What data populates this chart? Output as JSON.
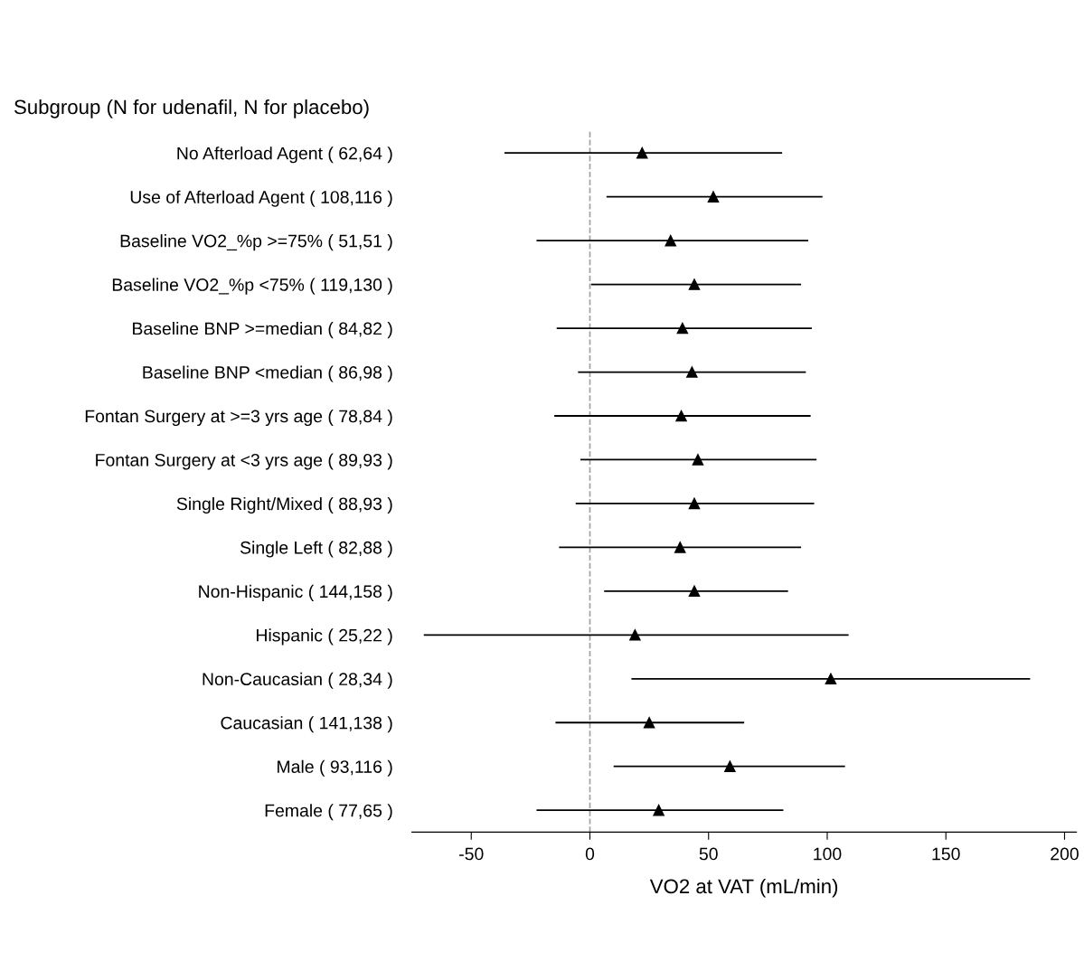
{
  "chart_data": {
    "type": "scatter",
    "orientation": "horizontal",
    "title": "Subgroup (N for udenafil, N for placebo)",
    "xlabel": "VO2 at VAT (mL/min)",
    "categories": [
      "No Afterload Agent ( 62,64 )",
      "Use of Afterload Agent ( 108,116 )",
      "Baseline VO2_%p >=75% ( 51,51 )",
      "Baseline VO2_%p <75% ( 119,130 )",
      "Baseline BNP >=median ( 84,82 )",
      "Baseline BNP <median ( 86,98 )",
      "Fontan Surgery at >=3 yrs age ( 78,84 )",
      "Fontan Surgery at <3 yrs age ( 89,93 )",
      "Single Right/Mixed ( 88,93 )",
      "Single Left ( 82,88 )",
      "Non-Hispanic ( 144,158 )",
      "Hispanic ( 25,22 )",
      "Non-Caucasian ( 28,34 )",
      "Caucasian ( 141,138 )",
      "Male ( 93,116 )",
      "Female ( 77,65 )"
    ],
    "values": [
      22,
      52,
      34,
      44,
      39,
      43,
      38.5,
      45.5,
      44,
      38,
      44,
      19,
      101.5,
      25,
      59,
      29
    ],
    "errors": [
      [
        -36,
        81
      ],
      [
        7,
        98
      ],
      [
        -22.5,
        92
      ],
      [
        0.5,
        89
      ],
      [
        -14,
        93.5
      ],
      [
        -5,
        91
      ],
      [
        -15,
        93
      ],
      [
        -4,
        95.5
      ],
      [
        -6,
        94.5
      ],
      [
        -13,
        89
      ],
      [
        6,
        83.5
      ],
      [
        -70,
        109
      ],
      [
        17.5,
        185.5
      ],
      [
        -14.5,
        65
      ],
      [
        10,
        107.5
      ],
      [
        -22.5,
        81.5
      ]
    ],
    "color": "#000000",
    "marker": "triangle",
    "xlim": [
      -75,
      205
    ],
    "xticks": [
      -50,
      0,
      50,
      100,
      150,
      200
    ],
    "ref_lines": [
      {
        "axis": "x",
        "value": 0,
        "color": "#a0a0a0",
        "line_style": "dashed"
      }
    ],
    "grid": false,
    "legend": false
  }
}
